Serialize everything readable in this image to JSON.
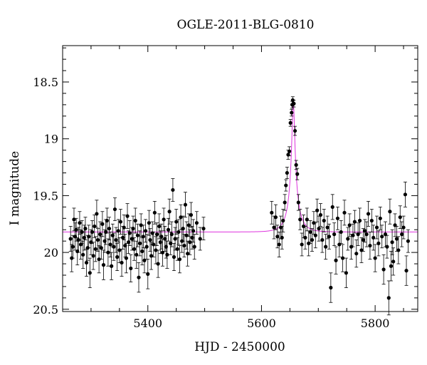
{
  "chart_data": {
    "type": "scatter",
    "title": "OGLE-2011-BLG-0810",
    "xlabel": "HJD - 2450000",
    "ylabel": "I magnitude",
    "xlim": [
      5250,
      5875
    ],
    "ylim": [
      20.52,
      18.18
    ],
    "y_inverted": true,
    "x_ticks": [
      5400,
      5600,
      5800
    ],
    "y_ticks": [
      18.5,
      19,
      19.5,
      20,
      20.5
    ],
    "x_tick_labels": [
      "5400",
      "5600",
      "5800"
    ],
    "y_tick_labels": [
      "18.5",
      "19",
      "19.5",
      "20",
      "20.5"
    ],
    "grid": false,
    "colors": {
      "points": "#000000",
      "model": "#dd33dd",
      "frame": "#000000"
    },
    "series": [
      {
        "kind": "observations_with_errorbars",
        "points": [
          [
            5264,
            19.88,
            0.11
          ],
          [
            5266,
            20.05,
            0.12
          ],
          [
            5268,
            19.95,
            0.1
          ],
          [
            5270,
            19.71,
            0.1
          ],
          [
            5272,
            19.86,
            0.12
          ],
          [
            5274,
            19.8,
            0.1
          ],
          [
            5276,
            19.99,
            0.12
          ],
          [
            5278,
            19.89,
            0.11
          ],
          [
            5280,
            19.74,
            0.1
          ],
          [
            5282,
            19.93,
            0.13
          ],
          [
            5284,
            19.82,
            0.1
          ],
          [
            5286,
            20.02,
            0.12
          ],
          [
            5288,
            19.87,
            0.11
          ],
          [
            5290,
            19.79,
            0.1
          ],
          [
            5292,
            20.09,
            0.12
          ],
          [
            5294,
            19.96,
            0.11
          ],
          [
            5296,
            19.86,
            0.1
          ],
          [
            5298,
            20.18,
            0.13
          ],
          [
            5300,
            19.91,
            0.11
          ],
          [
            5302,
            19.82,
            0.1
          ],
          [
            5304,
            20.03,
            0.12
          ],
          [
            5306,
            19.77,
            0.1
          ],
          [
            5308,
            19.97,
            0.11
          ],
          [
            5310,
            19.66,
            0.12
          ],
          [
            5312,
            19.89,
            0.1
          ],
          [
            5314,
            20.06,
            0.12
          ],
          [
            5316,
            19.84,
            0.11
          ],
          [
            5318,
            19.96,
            0.1
          ],
          [
            5320,
            19.75,
            0.11
          ],
          [
            5322,
            20.11,
            0.13
          ],
          [
            5324,
            19.9,
            0.1
          ],
          [
            5326,
            19.82,
            0.11
          ],
          [
            5328,
            19.72,
            0.11
          ],
          [
            5330,
            20.0,
            0.12
          ],
          [
            5332,
            19.79,
            0.1
          ],
          [
            5334,
            19.93,
            0.11
          ],
          [
            5336,
            20.12,
            0.12
          ],
          [
            5338,
            19.85,
            0.1
          ],
          [
            5340,
            19.95,
            0.12
          ],
          [
            5342,
            19.62,
            0.1
          ],
          [
            5344,
            19.89,
            0.11
          ],
          [
            5346,
            20.04,
            0.12
          ],
          [
            5348,
            19.81,
            0.1
          ],
          [
            5350,
            19.98,
            0.11
          ],
          [
            5352,
            19.73,
            0.11
          ],
          [
            5354,
            20.09,
            0.12
          ],
          [
            5356,
            19.87,
            0.1
          ],
          [
            5358,
            19.78,
            0.11
          ],
          [
            5360,
            19.94,
            0.1
          ],
          [
            5362,
            20.05,
            0.13
          ],
          [
            5364,
            19.68,
            0.11
          ],
          [
            5366,
            19.91,
            0.1
          ],
          [
            5368,
            19.83,
            0.11
          ],
          [
            5370,
            20.14,
            0.12
          ],
          [
            5372,
            19.88,
            0.1
          ],
          [
            5374,
            19.79,
            0.11
          ],
          [
            5376,
            19.97,
            0.1
          ],
          [
            5378,
            19.72,
            0.11
          ],
          [
            5380,
            20.02,
            0.12
          ],
          [
            5382,
            19.85,
            0.1
          ],
          [
            5384,
            20.22,
            0.13
          ],
          [
            5386,
            19.92,
            0.11
          ],
          [
            5388,
            19.76,
            0.1
          ],
          [
            5390,
            19.99,
            0.12
          ],
          [
            5392,
            19.86,
            0.1
          ],
          [
            5394,
            20.07,
            0.11
          ],
          [
            5396,
            19.81,
            0.1
          ],
          [
            5398,
            19.95,
            0.11
          ],
          [
            5400,
            20.19,
            0.13
          ],
          [
            5402,
            19.74,
            0.11
          ],
          [
            5404,
            19.89,
            0.1
          ],
          [
            5406,
            20.03,
            0.12
          ],
          [
            5408,
            19.83,
            0.1
          ],
          [
            5410,
            19.93,
            0.11
          ],
          [
            5412,
            19.65,
            0.1
          ],
          [
            5414,
            19.98,
            0.12
          ],
          [
            5416,
            19.84,
            0.1
          ],
          [
            5418,
            20.1,
            0.12
          ],
          [
            5420,
            19.77,
            0.11
          ],
          [
            5422,
            19.91,
            0.1
          ],
          [
            5424,
            19.86,
            0.11
          ],
          [
            5426,
            20.0,
            0.12
          ],
          [
            5428,
            19.71,
            0.1
          ],
          [
            5430,
            19.88,
            0.11
          ],
          [
            5432,
            19.95,
            0.1
          ],
          [
            5434,
            20.02,
            0.12
          ],
          [
            5436,
            19.8,
            0.1
          ],
          [
            5438,
            19.64,
            0.11
          ],
          [
            5440,
            19.92,
            0.1
          ],
          [
            5442,
            19.84,
            0.11
          ],
          [
            5444,
            19.45,
            0.1
          ],
          [
            5446,
            20.04,
            0.12
          ],
          [
            5448,
            19.88,
            0.1
          ],
          [
            5450,
            19.73,
            0.11
          ],
          [
            5452,
            19.97,
            0.1
          ],
          [
            5454,
            19.82,
            0.11
          ],
          [
            5456,
            20.06,
            0.12
          ],
          [
            5458,
            19.69,
            0.11
          ],
          [
            5460,
            19.9,
            0.1
          ],
          [
            5462,
            19.79,
            0.11
          ],
          [
            5464,
            19.94,
            0.1
          ],
          [
            5466,
            19.58,
            0.11
          ],
          [
            5468,
            19.85,
            0.12
          ],
          [
            5470,
            20.01,
            0.11
          ],
          [
            5472,
            19.76,
            0.1
          ],
          [
            5474,
            19.91,
            0.11
          ],
          [
            5476,
            19.67,
            0.11
          ],
          [
            5478,
            19.87,
            0.1
          ],
          [
            5480,
            19.81,
            0.1
          ],
          [
            5482,
            19.95,
            0.11
          ],
          [
            5486,
            19.74,
            0.1
          ],
          [
            5492,
            19.88,
            0.1
          ],
          [
            5498,
            19.79,
            0.1
          ],
          [
            5618,
            19.65,
            0.1
          ],
          [
            5622,
            19.78,
            0.1
          ],
          [
            5625,
            19.69,
            0.11
          ],
          [
            5628,
            19.86,
            0.1
          ],
          [
            5631,
            19.93,
            0.11
          ],
          [
            5634,
            19.78,
            0.1
          ],
          [
            5636,
            19.87,
            0.1
          ],
          [
            5638,
            19.72,
            0.1
          ],
          [
            5641,
            19.56,
            0.07
          ],
          [
            5643,
            19.41,
            0.05
          ],
          [
            5645,
            19.3,
            0.05
          ],
          [
            5647,
            19.14,
            0.04
          ],
          [
            5649,
            19.11,
            0.04
          ],
          [
            5651,
            18.86,
            0.03
          ],
          [
            5653,
            18.77,
            0.03
          ],
          [
            5654,
            18.7,
            0.03
          ],
          [
            5655,
            18.66,
            0.03
          ],
          [
            5657,
            18.69,
            0.03
          ],
          [
            5659,
            18.93,
            0.04
          ],
          [
            5661,
            19.23,
            0.04
          ],
          [
            5663,
            19.31,
            0.05
          ],
          [
            5665,
            19.56,
            0.07
          ],
          [
            5668,
            19.71,
            0.09
          ],
          [
            5671,
            19.93,
            0.1
          ],
          [
            5674,
            19.77,
            0.1
          ],
          [
            5677,
            19.87,
            0.1
          ],
          [
            5680,
            19.71,
            0.1
          ],
          [
            5683,
            19.92,
            0.11
          ],
          [
            5686,
            19.82,
            0.1
          ],
          [
            5689,
            19.89,
            0.1
          ],
          [
            5692,
            19.74,
            0.1
          ],
          [
            5695,
            19.85,
            0.11
          ],
          [
            5698,
            19.63,
            0.1
          ],
          [
            5701,
            19.79,
            0.11
          ],
          [
            5704,
            19.67,
            0.1
          ],
          [
            5707,
            19.89,
            0.11
          ],
          [
            5710,
            19.72,
            0.1
          ],
          [
            5713,
            19.95,
            0.11
          ],
          [
            5716,
            19.78,
            0.1
          ],
          [
            5719,
            19.86,
            0.11
          ],
          [
            5722,
            20.31,
            0.13
          ],
          [
            5725,
            19.6,
            0.11
          ],
          [
            5728,
            19.84,
            0.1
          ],
          [
            5731,
            20.07,
            0.12
          ],
          [
            5734,
            19.7,
            0.1
          ],
          [
            5737,
            19.93,
            0.11
          ],
          [
            5740,
            19.82,
            0.1
          ],
          [
            5743,
            20.05,
            0.12
          ],
          [
            5746,
            19.65,
            0.11
          ],
          [
            5749,
            20.18,
            0.13
          ],
          [
            5752,
            19.88,
            0.1
          ],
          [
            5755,
            19.76,
            0.1
          ],
          [
            5758,
            19.95,
            0.11
          ],
          [
            5761,
            19.85,
            0.1
          ],
          [
            5764,
            19.73,
            0.1
          ],
          [
            5767,
            20.01,
            0.12
          ],
          [
            5770,
            19.84,
            0.1
          ],
          [
            5773,
            19.72,
            0.11
          ],
          [
            5776,
            19.98,
            0.11
          ],
          [
            5779,
            19.89,
            0.1
          ],
          [
            5782,
            19.81,
            0.1
          ],
          [
            5785,
            19.84,
            0.11
          ],
          [
            5788,
            19.66,
            0.11
          ],
          [
            5791,
            19.94,
            0.12
          ],
          [
            5794,
            19.72,
            0.1
          ],
          [
            5797,
            19.87,
            0.11
          ],
          [
            5800,
            20.05,
            0.12
          ],
          [
            5803,
            19.78,
            0.1
          ],
          [
            5806,
            19.92,
            0.11
          ],
          [
            5809,
            19.7,
            0.1
          ],
          [
            5812,
            19.86,
            0.1
          ],
          [
            5815,
            20.15,
            0.13
          ],
          [
            5818,
            19.84,
            0.11
          ],
          [
            5821,
            19.95,
            0.1
          ],
          [
            5824,
            20.4,
            0.15
          ],
          [
            5826,
            19.64,
            0.11
          ],
          [
            5828,
            20.12,
            0.13
          ],
          [
            5830,
            19.91,
            0.11
          ],
          [
            5832,
            20.08,
            0.12
          ],
          [
            5835,
            19.76,
            0.1
          ],
          [
            5838,
            19.88,
            0.11
          ],
          [
            5841,
            19.98,
            0.12
          ],
          [
            5844,
            19.69,
            0.1
          ],
          [
            5847,
            19.84,
            0.11
          ],
          [
            5850,
            19.78,
            0.1
          ],
          [
            5853,
            19.49,
            0.11
          ],
          [
            5855,
            20.16,
            0.13
          ],
          [
            5858,
            19.9,
            0.1
          ]
        ]
      },
      {
        "kind": "model",
        "baseline": 19.82,
        "peak_magnitude": 18.67,
        "peak_time": 5656,
        "x_range": [
          5250,
          5875
        ]
      }
    ]
  }
}
